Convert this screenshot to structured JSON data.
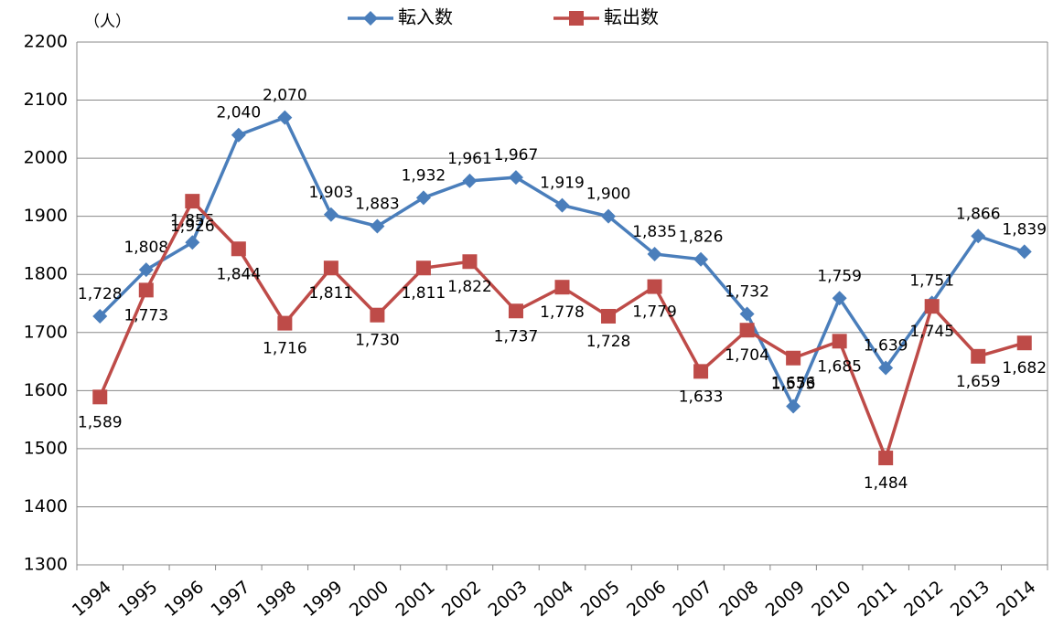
{
  "chart_data": {
    "type": "line",
    "y_label": "（人）",
    "categories": [
      "1994",
      "1995",
      "1996",
      "1997",
      "1998",
      "1999",
      "2000",
      "2001",
      "2002",
      "2003",
      "2004",
      "2005",
      "2006",
      "2007",
      "2008",
      "2009",
      "2010",
      "2011",
      "2012",
      "2013",
      "2014"
    ],
    "series": [
      {
        "name": "転入数",
        "color": "#4a7ebb",
        "marker": "diamond",
        "values": [
          1728,
          1808,
          1855,
          2040,
          2070,
          1903,
          1883,
          1932,
          1961,
          1967,
          1919,
          1900,
          1835,
          1826,
          1732,
          1573,
          1759,
          1639,
          1751,
          1866,
          1839
        ],
        "value_labels": [
          "1,728",
          "1,808",
          "1,855",
          "2,040",
          "2,070",
          "1,903",
          "1,883",
          "1,932",
          "1,961",
          "1,967",
          "1,919",
          "1,900",
          "1,835",
          "1,826",
          "1,732",
          "1,573",
          "1,759",
          "1,639",
          "1,751",
          "1,866",
          "1,839"
        ]
      },
      {
        "name": "転出数",
        "color": "#be4b48",
        "marker": "square",
        "values": [
          1589,
          1773,
          1926,
          1844,
          1716,
          1811,
          1730,
          1811,
          1822,
          1737,
          1778,
          1728,
          1779,
          1633,
          1704,
          1656,
          1685,
          1484,
          1745,
          1659,
          1682
        ],
        "value_labels": [
          "1,589",
          "1,773",
          "1,926",
          "1,844",
          "1,716",
          "1,811",
          "1,730",
          "1,811",
          "1,822",
          "1,737",
          "1,778",
          "1,728",
          "1,779",
          "1,633",
          "1,704",
          "1,656",
          "1,685",
          "1,484",
          "1,745",
          "1,659",
          "1,682"
        ]
      }
    ],
    "ylim": [
      1300,
      2200
    ],
    "yticks": [
      1300,
      1400,
      1500,
      1600,
      1700,
      1800,
      1900,
      2000,
      2100,
      2200
    ],
    "grid": true,
    "legend": "top"
  }
}
